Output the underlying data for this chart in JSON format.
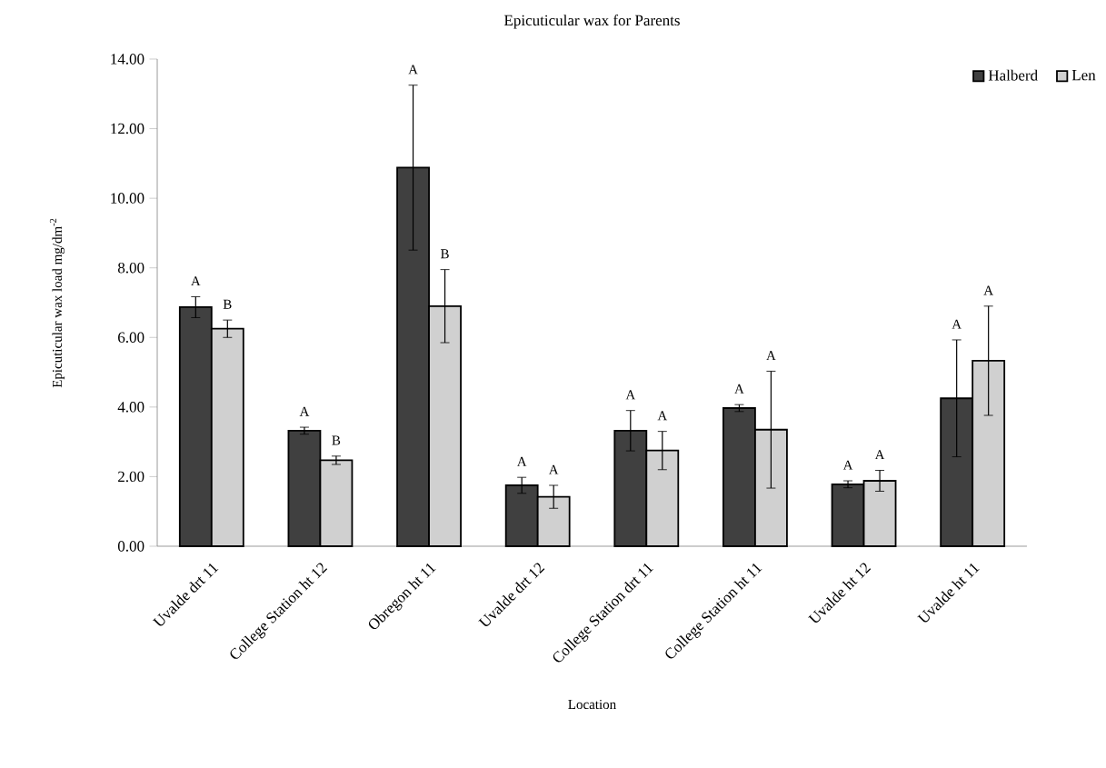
{
  "chart_data": {
    "type": "bar",
    "title": "Epicuticular wax for Parents",
    "xlabel": "Location",
    "ylabel": "Epicuticular wax load mg/dm$^{-2}$",
    "categories": [
      "Uvalde drt 11",
      "College Station ht 12",
      "Obregon ht 11",
      "Uvalde drt 12",
      "College Station drt 11",
      "College Station ht 11",
      "Uvalde ht 12",
      "Uvalde ht 11"
    ],
    "series": [
      {
        "name": "Halberd",
        "color": "#404040",
        "values": [
          6.87,
          3.32,
          10.88,
          1.75,
          3.32,
          3.97,
          1.78,
          4.25
        ],
        "errors": [
          0.3,
          0.1,
          2.37,
          0.23,
          0.58,
          0.1,
          0.1,
          1.68
        ]
      },
      {
        "name": "Len",
        "color": "#d0d0d0",
        "values": [
          6.25,
          2.47,
          6.9,
          1.42,
          2.75,
          3.35,
          1.88,
          5.33
        ],
        "errors": [
          0.25,
          0.12,
          1.05,
          0.33,
          0.55,
          1.68,
          0.3,
          1.57
        ]
      }
    ],
    "annotations": [
      "A",
      "B",
      "A",
      "B",
      "A",
      "B",
      "A",
      "A",
      "A",
      "A",
      "A",
      "A",
      "A",
      "A",
      "A",
      "A"
    ],
    "ylim": [
      0,
      14
    ],
    "yticks": [
      {
        "value": 0,
        "label": "0.00"
      },
      {
        "value": 2,
        "label": "2.00"
      },
      {
        "value": 4,
        "label": "4.00"
      },
      {
        "value": 6,
        "label": "6.00"
      },
      {
        "value": 8,
        "label": "8.00"
      },
      {
        "value": 10,
        "label": "10.00"
      },
      {
        "value": 12,
        "label": "12.00"
      },
      {
        "value": 14,
        "label": "14.00"
      }
    ],
    "legend": "top right"
  }
}
